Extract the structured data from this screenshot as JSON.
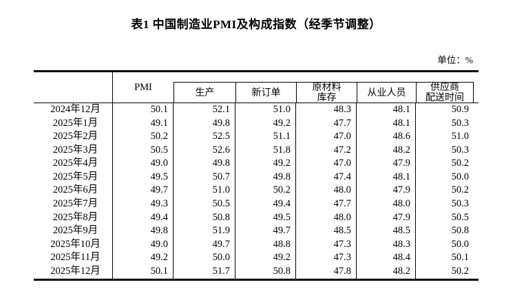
{
  "title": "表1 中国制造业PMI及构成指数（经季节调整）",
  "unit_label": "单位：%",
  "table": {
    "pmi_header": "PMI",
    "sub_headers": [
      "生产",
      "新订单",
      "原材料\n库存",
      "从业人员",
      "供应商\n配送时间"
    ]
  },
  "chart_data": {
    "type": "table",
    "title": "表1 中国制造业PMI及构成指数（经季节调整）",
    "unit": "%",
    "categories": [
      "2024年12月",
      "2025年1月",
      "2025年2月",
      "2025年3月",
      "2025年4月",
      "2025年5月",
      "2025年6月",
      "2025年7月",
      "2025年8月",
      "2025年9月",
      "2025年10月",
      "2025年11月",
      "2025年12月"
    ],
    "series": [
      {
        "name": "PMI",
        "values": [
          50.1,
          49.1,
          50.2,
          50.5,
          49.0,
          49.5,
          49.7,
          49.3,
          49.4,
          49.8,
          49.0,
          49.2,
          50.1
        ]
      },
      {
        "name": "生产",
        "values": [
          52.1,
          49.8,
          52.5,
          52.6,
          49.8,
          50.7,
          51.0,
          50.5,
          50.8,
          51.9,
          49.7,
          50.0,
          51.7
        ]
      },
      {
        "name": "新订单",
        "values": [
          51.0,
          49.2,
          51.1,
          51.8,
          49.2,
          49.8,
          50.2,
          49.4,
          49.5,
          49.7,
          48.8,
          49.2,
          50.8
        ]
      },
      {
        "name": "原材料库存",
        "values": [
          48.3,
          47.7,
          47.0,
          47.2,
          47.0,
          47.4,
          48.0,
          47.7,
          48.0,
          48.5,
          47.3,
          47.3,
          47.8
        ]
      },
      {
        "name": "从业人员",
        "values": [
          48.1,
          48.1,
          48.6,
          48.2,
          47.9,
          48.1,
          47.9,
          48.0,
          47.9,
          48.5,
          48.3,
          48.4,
          48.2
        ]
      },
      {
        "name": "供应商配送时间",
        "values": [
          50.9,
          50.3,
          51.0,
          50.3,
          50.2,
          50.0,
          50.2,
          50.3,
          50.5,
          50.8,
          50.0,
          50.1,
          50.2
        ]
      }
    ]
  }
}
